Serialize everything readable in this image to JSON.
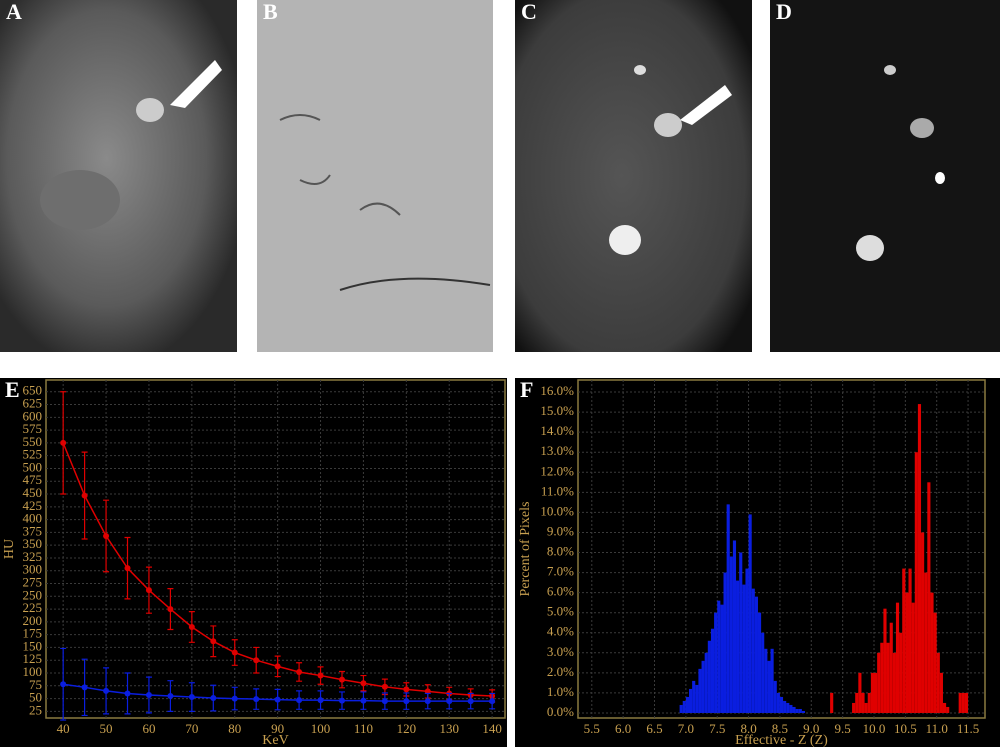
{
  "image_panels": [
    {
      "label": "A"
    },
    {
      "label": "B"
    },
    {
      "label": "C"
    },
    {
      "label": "D"
    }
  ],
  "chart_data": [
    {
      "type": "line",
      "panel_label": "E",
      "ylabel": "HU",
      "xlabel": "KeV",
      "x": [
        40,
        45,
        50,
        55,
        60,
        65,
        70,
        75,
        80,
        85,
        90,
        95,
        100,
        105,
        110,
        115,
        120,
        125,
        130,
        135,
        140
      ],
      "series": [
        {
          "color": "#e00000",
          "values": [
            550,
            447,
            368,
            305,
            262,
            225,
            190,
            162,
            140,
            125,
            113,
            102,
            95,
            87,
            80,
            73,
            68,
            64,
            60,
            57,
            55
          ],
          "errors": [
            100,
            85,
            70,
            60,
            45,
            40,
            30,
            30,
            25,
            25,
            20,
            18,
            17,
            16,
            15,
            15,
            13,
            13,
            12,
            12,
            12
          ]
        },
        {
          "color": "#0a1ee0",
          "values": [
            78,
            72,
            65,
            60,
            57,
            55,
            53,
            51,
            50,
            49,
            48,
            47,
            47,
            46,
            46,
            45,
            45,
            45,
            45,
            45,
            45
          ],
          "errors": [
            70,
            55,
            45,
            40,
            35,
            30,
            28,
            25,
            22,
            20,
            20,
            18,
            18,
            17,
            17,
            16,
            16,
            15,
            15,
            15,
            15
          ]
        }
      ],
      "xlim": [
        36,
        143
      ],
      "xticks": [
        40,
        50,
        60,
        70,
        80,
        90,
        100,
        110,
        120,
        130,
        140
      ],
      "ylim": [
        12,
        673
      ],
      "yticks": [
        25,
        50,
        75,
        100,
        125,
        150,
        175,
        200,
        225,
        250,
        275,
        300,
        325,
        350,
        375,
        400,
        425,
        450,
        475,
        500,
        525,
        550,
        575,
        600,
        625,
        650
      ],
      "grid": true
    },
    {
      "type": "histogram",
      "panel_label": "F",
      "ylabel": "Percent of Pixels",
      "xlabel": "Effective - Z (Z)",
      "series": [
        {
          "color": "#0a1ee0",
          "bins": [
            6.9,
            6.95,
            7.0,
            7.05,
            7.1,
            7.15,
            7.2,
            7.25,
            7.3,
            7.35,
            7.4,
            7.45,
            7.5,
            7.55,
            7.6,
            7.65,
            7.7,
            7.75,
            7.8,
            7.85,
            7.9,
            7.95,
            8.0,
            8.05,
            8.1,
            8.15,
            8.2,
            8.25,
            8.3,
            8.35,
            8.4,
            8.45,
            8.5,
            8.55,
            8.6,
            8.65,
            8.7,
            8.75,
            8.8,
            8.85,
            8.9
          ],
          "values": [
            0.4,
            0.6,
            0.8,
            1.2,
            1.6,
            1.4,
            2.2,
            2.6,
            3.0,
            3.6,
            4.2,
            5.0,
            5.6,
            5.4,
            7.0,
            10.4,
            7.8,
            8.6,
            6.6,
            8.0,
            6.4,
            7.2,
            9.9,
            6.2,
            5.8,
            5.0,
            4.0,
            3.2,
            2.6,
            3.2,
            1.6,
            1.0,
            0.8,
            0.6,
            0.5,
            0.4,
            0.3,
            0.2,
            0.2,
            0.1
          ]
        },
        {
          "color": "#e00000",
          "bins": [
            9.3,
            9.35,
            9.4,
            9.45,
            9.5,
            9.55,
            9.6,
            9.65,
            9.7,
            9.75,
            9.8,
            9.85,
            9.9,
            9.95,
            10.0,
            10.05,
            10.1,
            10.15,
            10.2,
            10.25,
            10.3,
            10.35,
            10.4,
            10.45,
            10.5,
            10.55,
            10.6,
            10.65,
            10.7,
            10.75,
            10.8,
            10.85,
            10.9,
            10.95,
            11.0,
            11.05,
            11.1,
            11.15,
            11.2,
            11.25,
            11.3,
            11.35,
            11.4,
            11.45,
            11.5
          ],
          "values": [
            1.0,
            0,
            0,
            0,
            0,
            0,
            0,
            0.5,
            1.0,
            2.0,
            1.0,
            0.5,
            1.0,
            2.0,
            2.0,
            3.0,
            3.5,
            5.2,
            3.5,
            4.5,
            3.0,
            5.5,
            4.0,
            7.2,
            6.0,
            7.2,
            5.5,
            13.0,
            15.4,
            9.0,
            7.0,
            11.5,
            6.0,
            5.0,
            3.0,
            2.0,
            0.5,
            0.3,
            0,
            0,
            0,
            1.0,
            1.0,
            1.0
          ]
        }
      ],
      "xlim": [
        5.28,
        11.77
      ],
      "xticks": [
        5.5,
        {
          "value": 6,
          "label": "6.0"
        },
        6.5,
        {
          "value": 7,
          "label": "7.0"
        },
        7.5,
        {
          "value": 8,
          "label": "8.0"
        },
        8.5,
        {
          "value": 9,
          "label": "9.0"
        },
        9.5,
        {
          "value": 10,
          "label": "10.0"
        },
        10.5,
        {
          "value": 11,
          "label": "11.0"
        },
        11.5
      ],
      "ylim": [
        -0.25,
        16.6
      ],
      "yticks": [
        {
          "value": 0,
          "label": "0.0%"
        },
        {
          "value": 1,
          "label": "1.0%"
        },
        {
          "value": 2,
          "label": "2.0%"
        },
        {
          "value": 3,
          "label": "3.0%"
        },
        {
          "value": 4,
          "label": "4.0%"
        },
        {
          "value": 5,
          "label": "5.0%"
        },
        {
          "value": 6,
          "label": "6.0%"
        },
        {
          "value": 7,
          "label": "7.0%"
        },
        {
          "value": 8,
          "label": "8.0%"
        },
        {
          "value": 9,
          "label": "9.0%"
        },
        {
          "value": 10,
          "label": "10.0%"
        },
        {
          "value": 11,
          "label": "11.0%"
        },
        {
          "value": 12,
          "label": "12.0%"
        },
        {
          "value": 13,
          "label": "13.0%"
        },
        {
          "value": 14,
          "label": "14.0%"
        },
        {
          "value": 15,
          "label": "15.0%"
        },
        {
          "value": 16,
          "label": "16.0%"
        }
      ],
      "grid": true
    }
  ]
}
